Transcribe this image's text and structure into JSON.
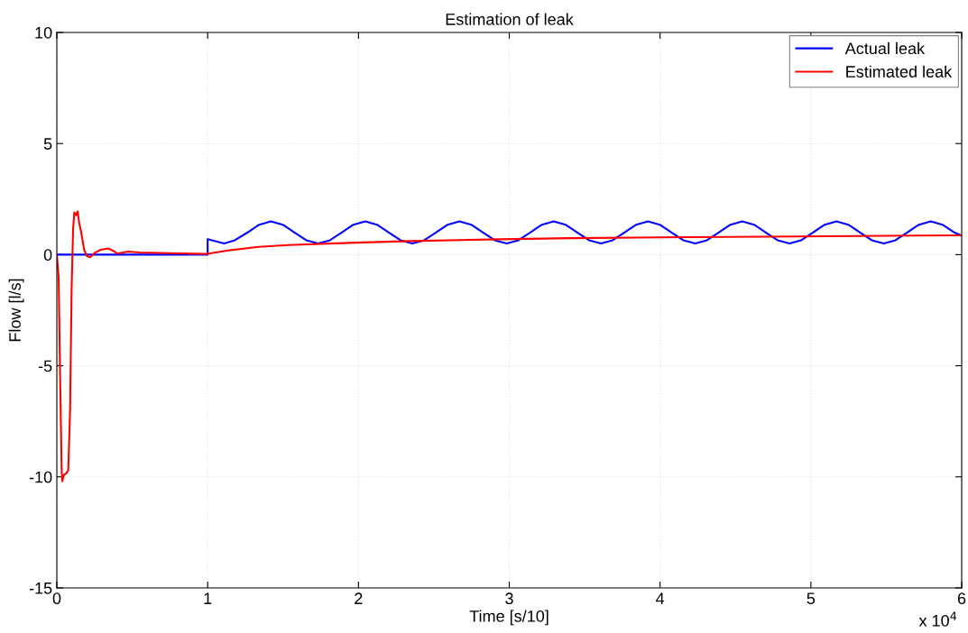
{
  "chart_data": {
    "type": "line",
    "title": "Estimation of leak",
    "xlabel": "Time [s/10]",
    "ylabel": "Flow [l/s]",
    "xlim": [
      0,
      6
    ],
    "ylim": [
      -15,
      10
    ],
    "xticks": [
      0,
      1,
      2,
      3,
      4,
      5,
      6
    ],
    "yticks": [
      -15,
      -10,
      -5,
      0,
      5,
      10
    ],
    "annotations": [
      "x 10$^{4}$"
    ],
    "grid": true,
    "legend": "top right",
    "series": [
      {
        "name": "Actual leak",
        "color": "#0000ff",
        "x": [
          0,
          1,
          1,
          1.11,
          1.18,
          1.265,
          1.342,
          1.42,
          1.498,
          1.576,
          1.654,
          1.733,
          1.811,
          1.889,
          1.967,
          2.045,
          2.123,
          2.201,
          2.279,
          2.358,
          2.436,
          2.514,
          2.592,
          2.67,
          2.748,
          2.826,
          2.904,
          2.983,
          3.061,
          3.139,
          3.217,
          3.295,
          3.373,
          3.451,
          3.529,
          3.608,
          3.686,
          3.764,
          3.842,
          3.92,
          3.998,
          4.076,
          4.154,
          4.233,
          4.311,
          4.389,
          4.467,
          4.545,
          4.623,
          4.701,
          4.779,
          4.858,
          4.936,
          5.014,
          5.092,
          5.17,
          5.248,
          5.326,
          5.404,
          5.483,
          5.561,
          5.639,
          5.717,
          5.795,
          5.873,
          5.951,
          6
        ],
        "values": [
          0,
          0,
          0.7,
          0.5,
          0.65,
          1.0,
          1.35,
          1.5,
          1.35,
          1.0,
          0.65,
          0.5,
          0.65,
          1.0,
          1.35,
          1.5,
          1.35,
          1.0,
          0.65,
          0.5,
          0.65,
          1.0,
          1.35,
          1.5,
          1.35,
          1.0,
          0.65,
          0.5,
          0.65,
          1.0,
          1.35,
          1.5,
          1.35,
          1.0,
          0.65,
          0.5,
          0.65,
          1.0,
          1.35,
          1.5,
          1.35,
          1.0,
          0.65,
          0.5,
          0.65,
          1.0,
          1.35,
          1.5,
          1.35,
          1.0,
          0.65,
          0.5,
          0.65,
          1.0,
          1.35,
          1.5,
          1.35,
          1.0,
          0.65,
          0.5,
          0.65,
          1.0,
          1.35,
          1.5,
          1.35,
          1.0,
          0.85
        ]
      },
      {
        "name": "Estimated leak",
        "color": "#ff0000",
        "x": [
          0,
          0.012,
          0.022,
          0.032,
          0.036,
          0.048,
          0.062,
          0.076,
          0.088,
          0.098,
          0.108,
          0.116,
          0.128,
          0.138,
          0.148,
          0.161,
          0.181,
          0.201,
          0.221,
          0.251,
          0.291,
          0.341,
          0.371,
          0.401,
          0.471,
          0.551,
          0.75,
          0.989,
          1.136,
          1.338,
          1.537,
          1.936,
          2.333,
          2.931,
          3.4,
          4.0,
          4.7,
          5.3,
          6.0
        ],
        "values": [
          0,
          -1.0,
          -5.6,
          -9.66,
          -10.2,
          -9.9,
          -9.85,
          -9.7,
          -6.95,
          -1.55,
          1.17,
          1.9,
          1.78,
          1.95,
          1.43,
          1.03,
          0.22,
          -0.08,
          -0.12,
          0.08,
          0.22,
          0.28,
          0.18,
          0.05,
          0.14,
          0.1,
          0.07,
          0.03,
          0.19,
          0.35,
          0.43,
          0.53,
          0.61,
          0.69,
          0.74,
          0.78,
          0.81,
          0.84,
          0.87
        ]
      }
    ]
  }
}
